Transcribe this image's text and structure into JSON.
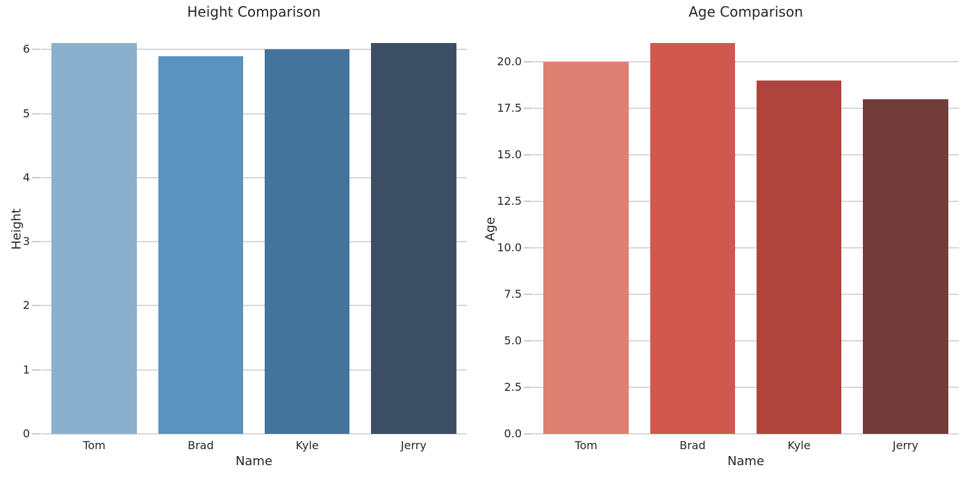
{
  "page": {
    "background_color": "#ffffff",
    "text_color": "#262626",
    "grid_color": "#D8D8D8",
    "tick_mark_color": "#CBCBCB"
  },
  "chart_data": [
    {
      "type": "bar",
      "title": "Height Comparison",
      "xlabel": "Name",
      "ylabel": "Height",
      "categories": [
        "Tom",
        "Brad",
        "Kyle",
        "Jerry"
      ],
      "values": [
        6.1,
        5.9,
        6.0,
        6.1
      ],
      "ylim": [
        0,
        6.405
      ],
      "yticks": [
        0,
        1,
        2,
        3,
        4,
        5,
        6
      ],
      "ytick_labels": [
        "0",
        "1",
        "2",
        "3",
        "4",
        "5",
        "6"
      ],
      "bar_colors": [
        "#8BB0CD",
        "#5B92BE",
        "#44739B",
        "#3B4E63"
      ],
      "bar_width_fraction": 0.8,
      "grid": true,
      "legend": false
    },
    {
      "type": "bar",
      "title": "Age Comparison",
      "xlabel": "Name",
      "ylabel": "Age",
      "categories": [
        "Tom",
        "Brad",
        "Kyle",
        "Jerry"
      ],
      "values": [
        20,
        21,
        19,
        18
      ],
      "ylim": [
        0,
        22.05
      ],
      "yticks": [
        0,
        2.5,
        5,
        7.5,
        10,
        12.5,
        15,
        17.5,
        20
      ],
      "ytick_labels": [
        "0.0",
        "2.5",
        "5.0",
        "7.5",
        "10.0",
        "12.5",
        "15.0",
        "17.5",
        "20.0"
      ],
      "bar_colors": [
        "#DF8172",
        "#D1584D",
        "#AE443C",
        "#713C39"
      ],
      "bar_width_fraction": 0.8,
      "grid": true,
      "legend": false
    }
  ]
}
